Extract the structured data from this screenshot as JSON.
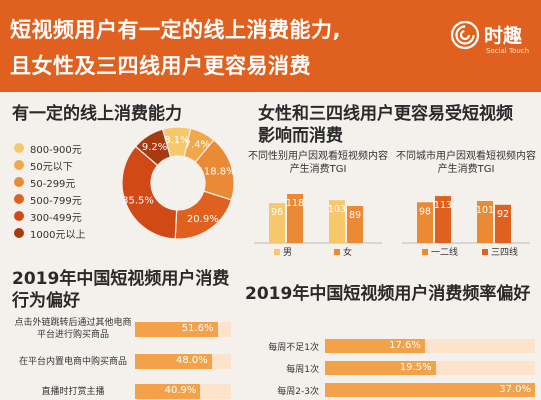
{
  "header": {
    "line1": "短视频用户有一定的线上消费能力,",
    "line2": "且女性及三四线用户更容易消费",
    "logo_name": "时趣",
    "logo_sub": "Social Touch"
  },
  "colors": {
    "header_bg": "#e0611f",
    "bar_main": "#f3a24a",
    "bar_track": "#fde3cc",
    "bar_dark": "#e0611f"
  },
  "chart_data": [
    {
      "type": "pie",
      "title": "有一定的线上消费能力",
      "donut": true,
      "labels": [
        "800-900元",
        "50元以下",
        "50-299元",
        "500-799元",
        "300-499元",
        "1000元以上"
      ],
      "values": [
        8.1,
        7.4,
        18.8,
        20.9,
        35.5,
        9.2
      ],
      "display_values": [
        "8.1%",
        "7.4%",
        "18.8%",
        "20.9%",
        "35.5%",
        "9.2%"
      ],
      "colors": [
        "#f6c76b",
        "#f2a84a",
        "#ea8a34",
        "#e0611f",
        "#cf4a17",
        "#a83a12"
      ],
      "legend_position": "left"
    },
    {
      "type": "bar",
      "title": "女性和三四线用户更容易受短视频影响而消费",
      "subtitle": "不同性别用户因观看短视频内容产生消费TGI",
      "categories": [
        "男",
        "女"
      ],
      "series": [
        {
          "values": [
            96,
            103
          ],
          "color": "#f6c76b"
        },
        {
          "values": [
            118,
            89
          ],
          "color": "#ea8a34"
        }
      ],
      "ylim": [
        0,
        130
      ]
    },
    {
      "type": "bar",
      "subtitle": "不同城市用户因观看短视频内容产生消费TGI",
      "categories": [
        "一二线",
        "三四线"
      ],
      "series": [
        {
          "values": [
            98,
            101
          ],
          "color": "#ea8a34"
        },
        {
          "values": [
            113,
            92
          ],
          "color": "#e0611f"
        }
      ],
      "ylim": [
        0,
        130
      ]
    },
    {
      "type": "bar",
      "orientation": "horizontal",
      "title": "2019年中国短视频用户消费行为偏好",
      "categories": [
        "点击外链跳转后通过其他电商平台进行购买商品",
        "在平台内置电商中购买商品",
        "直播时打赏主播"
      ],
      "values": [
        51.6,
        48.0,
        40.9
      ],
      "display_values": [
        "51.6%",
        "48.0%",
        "40.9%"
      ],
      "xlim": [
        0,
        60
      ]
    },
    {
      "type": "bar",
      "orientation": "horizontal",
      "title": "2019年中国短视频用户消费频率偏好",
      "categories": [
        "每周不足1次",
        "每周1次",
        "每周2-3次"
      ],
      "values": [
        17.6,
        19.5,
        37.0
      ],
      "display_values": [
        "17.6%",
        "19.5%",
        "37.0%"
      ],
      "xlim": [
        0,
        37
      ]
    }
  ]
}
